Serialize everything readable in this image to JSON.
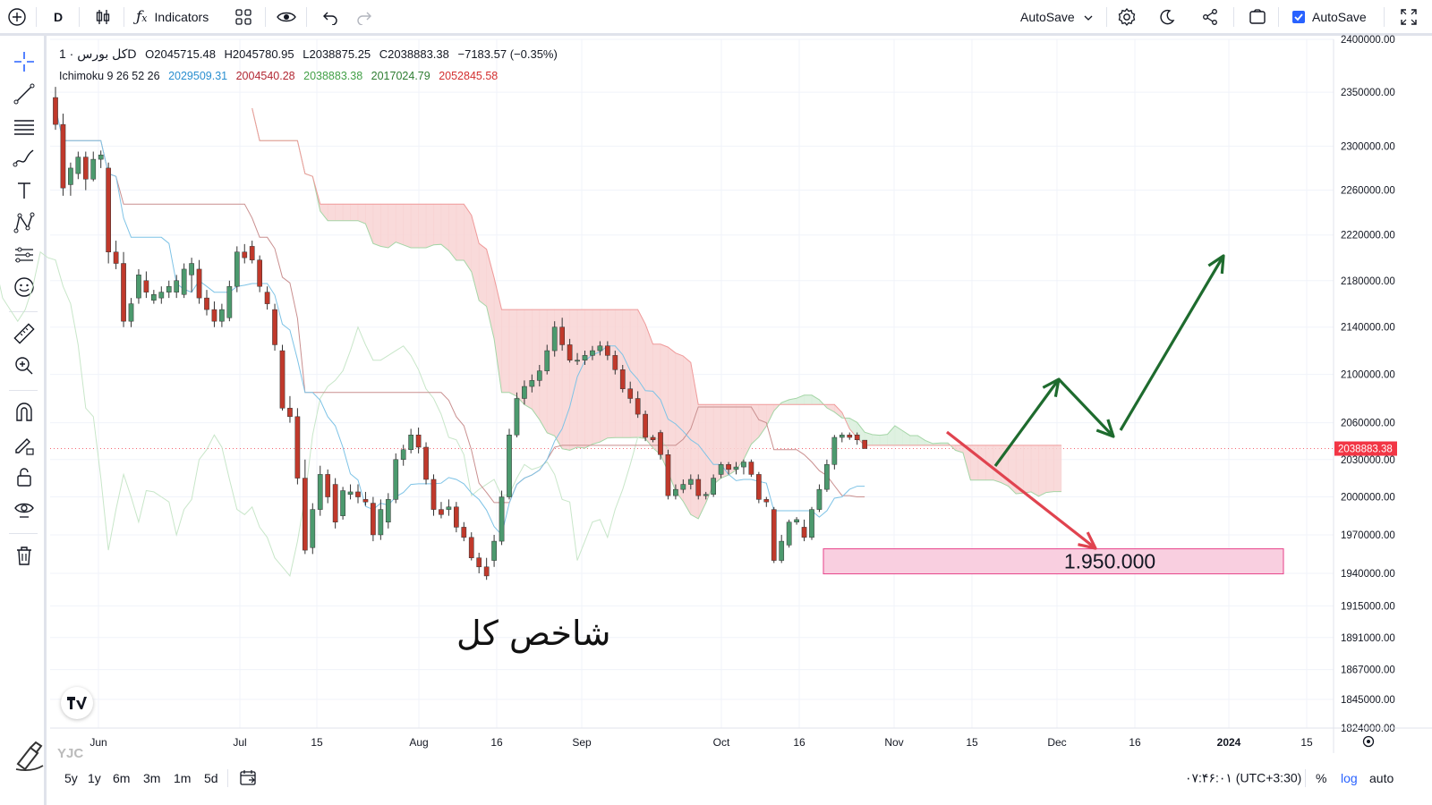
{
  "toolbar": {
    "interval": "D",
    "indicators_label": "Indicators",
    "autosave_dropdown": "AutoSave",
    "autosave_checkbox_label": "AutoSave"
  },
  "legend": {
    "symbol": "كل بورس · 1D",
    "open": "O2045715.48",
    "high": "H2045780.95",
    "low": "L2038875.25",
    "close": "C2038883.38",
    "change": "−7183.57 (−0.35%)",
    "ichimoku_label": "Ichimoku 9 26 52 26",
    "ichimoku_values": [
      {
        "value": "2029509.31",
        "color": "#2962ff"
      },
      {
        "value": "2004540.28",
        "color": "#b22833"
      },
      {
        "value": "2038883.38",
        "color": "#43a047"
      },
      {
        "value": "2017024.79",
        "color": "#388e3c"
      },
      {
        "value": "2052845.58",
        "color": "#f23645"
      }
    ]
  },
  "bottom": {
    "ranges": [
      "5y",
      "1y",
      "6m",
      "3m",
      "1m",
      "5d"
    ],
    "clock": "۰۷:۴۶:۰۱ (UTC+3:30)",
    "percent": "%",
    "log": "log",
    "auto": "auto"
  },
  "watermark_text": "شاخص کل",
  "logo_text": "YJC",
  "colors": {
    "up": "#4c9a6e",
    "down": "#c0392b",
    "cloud_green": "#d9efdc",
    "cloud_red": "#f8d3d3",
    "target_box": "#f9cfe0",
    "arrow_green": "#1e6b2e",
    "arrow_red": "#e0434f"
  },
  "chart_data": {
    "type": "candlestick",
    "symbol": "كل بورس",
    "interval": "1D",
    "x_ticks": [
      "Jun",
      "Jul",
      "15",
      "Aug",
      "16",
      "Sep",
      "Oct",
      "16",
      "Nov",
      "15",
      "Dec",
      "16",
      "2024",
      "15"
    ],
    "y_ticks": [
      "2400000.00",
      "2350000.00",
      "2300000.00",
      "2260000.00",
      "2220000.00",
      "2180000.00",
      "2140000.00",
      "2100000.00",
      "2060000.00",
      "2030000.00",
      "2000000.00",
      "1970000.00",
      "1940000.00",
      "1915000.00",
      "1891000.00",
      "1867000.00",
      "1845000.00",
      "1824000.00"
    ],
    "ylim": [
      1824000,
      2400000
    ],
    "log_scale": true,
    "last_price_label": "2038883.38",
    "target_label": "1.950.000",
    "target_level": 1950000,
    "candles": [
      {
        "o": 2345000,
        "h": 2355000,
        "l": 2315000,
        "c": 2320000
      },
      {
        "o": 2320000,
        "h": 2330000,
        "l": 2255000,
        "c": 2262000
      },
      {
        "o": 2265000,
        "h": 2285000,
        "l": 2255000,
        "c": 2280000
      },
      {
        "o": 2275000,
        "h": 2295000,
        "l": 2270000,
        "c": 2290000
      },
      {
        "o": 2290000,
        "h": 2295000,
        "l": 2260000,
        "c": 2270000
      },
      {
        "o": 2270000,
        "h": 2295000,
        "l": 2268000,
        "c": 2288000
      },
      {
        "o": 2288000,
        "h": 2296000,
        "l": 2280000,
        "c": 2292000
      },
      {
        "o": 2280000,
        "h": 2285000,
        "l": 2195000,
        "c": 2205000
      },
      {
        "o": 2205000,
        "h": 2215000,
        "l": 2190000,
        "c": 2195000
      },
      {
        "o": 2195000,
        "h": 2205000,
        "l": 2140000,
        "c": 2145000
      },
      {
        "o": 2145000,
        "h": 2165000,
        "l": 2140000,
        "c": 2160000
      },
      {
        "o": 2165000,
        "h": 2190000,
        "l": 2160000,
        "c": 2185000
      },
      {
        "o": 2180000,
        "h": 2188000,
        "l": 2165000,
        "c": 2170000
      },
      {
        "o": 2163000,
        "h": 2172000,
        "l": 2160000,
        "c": 2168000
      },
      {
        "o": 2165000,
        "h": 2175000,
        "l": 2160000,
        "c": 2170000
      },
      {
        "o": 2170000,
        "h": 2180000,
        "l": 2165000,
        "c": 2175000
      },
      {
        "o": 2170000,
        "h": 2185000,
        "l": 2165000,
        "c": 2180000
      },
      {
        "o": 2168000,
        "h": 2195000,
        "l": 2165000,
        "c": 2190000
      },
      {
        "o": 2185000,
        "h": 2200000,
        "l": 2170000,
        "c": 2195000
      },
      {
        "o": 2190000,
        "h": 2198000,
        "l": 2160000,
        "c": 2165000
      },
      {
        "o": 2165000,
        "h": 2172000,
        "l": 2150000,
        "c": 2155000
      },
      {
        "o": 2155000,
        "h": 2162000,
        "l": 2140000,
        "c": 2145000
      },
      {
        "o": 2145000,
        "h": 2160000,
        "l": 2140000,
        "c": 2155000
      },
      {
        "o": 2148000,
        "h": 2180000,
        "l": 2145000,
        "c": 2175000
      },
      {
        "o": 2175000,
        "h": 2210000,
        "l": 2170000,
        "c": 2205000
      },
      {
        "o": 2205000,
        "h": 2212000,
        "l": 2195000,
        "c": 2200000
      },
      {
        "o": 2210000,
        "h": 2215000,
        "l": 2195000,
        "c": 2198000
      },
      {
        "o": 2198000,
        "h": 2202000,
        "l": 2170000,
        "c": 2175000
      },
      {
        "o": 2170000,
        "h": 2175000,
        "l": 2155000,
        "c": 2160000
      },
      {
        "o": 2155000,
        "h": 2160000,
        "l": 2120000,
        "c": 2125000
      },
      {
        "o": 2120000,
        "h": 2125000,
        "l": 2070000,
        "c": 2072000
      },
      {
        "o": 2072000,
        "h": 2082000,
        "l": 2060000,
        "c": 2065000
      },
      {
        "o": 2065000,
        "h": 2072000,
        "l": 2010000,
        "c": 2015000
      },
      {
        "o": 2015000,
        "h": 2030000,
        "l": 1955000,
        "c": 1958000
      },
      {
        "o": 1960000,
        "h": 1995000,
        "l": 1955000,
        "c": 1990000
      },
      {
        "o": 1990000,
        "h": 2025000,
        "l": 1985000,
        "c": 2018000
      },
      {
        "o": 2018000,
        "h": 2022000,
        "l": 1995000,
        "c": 2000000
      },
      {
        "o": 2010000,
        "h": 2015000,
        "l": 1975000,
        "c": 1980000
      },
      {
        "o": 1985000,
        "h": 2008000,
        "l": 1982000,
        "c": 2005000
      },
      {
        "o": 2002000,
        "h": 2010000,
        "l": 1998000,
        "c": 2004000
      },
      {
        "o": 2004000,
        "h": 2010000,
        "l": 1995000,
        "c": 2000000
      },
      {
        "o": 1998000,
        "h": 2004000,
        "l": 1993000,
        "c": 1996000
      },
      {
        "o": 1995000,
        "h": 2000000,
        "l": 1965000,
        "c": 1970000
      },
      {
        "o": 1970000,
        "h": 1998000,
        "l": 1966000,
        "c": 1990000
      },
      {
        "o": 1980000,
        "h": 2003000,
        "l": 1975000,
        "c": 1998000
      },
      {
        "o": 1998000,
        "h": 2035000,
        "l": 1995000,
        "c": 2030000
      },
      {
        "o": 2030000,
        "h": 2042000,
        "l": 2025000,
        "c": 2038000
      },
      {
        "o": 2038000,
        "h": 2055000,
        "l": 2035000,
        "c": 2050000
      },
      {
        "o": 2050000,
        "h": 2056000,
        "l": 2035000,
        "c": 2040000
      },
      {
        "o": 2040000,
        "h": 2044000,
        "l": 2010000,
        "c": 2014000
      },
      {
        "o": 2014000,
        "h": 2018000,
        "l": 1985000,
        "c": 1990000
      },
      {
        "o": 1990000,
        "h": 1996000,
        "l": 1983000,
        "c": 1986000
      },
      {
        "o": 1990000,
        "h": 1998000,
        "l": 1985000,
        "c": 1992000
      },
      {
        "o": 1992000,
        "h": 1996000,
        "l": 1972000,
        "c": 1976000
      },
      {
        "o": 1976000,
        "h": 1980000,
        "l": 1965000,
        "c": 1968000
      },
      {
        "o": 1968000,
        "h": 1972000,
        "l": 1950000,
        "c": 1952000
      },
      {
        "o": 1952000,
        "h": 1956000,
        "l": 1940000,
        "c": 1945000
      },
      {
        "o": 1945000,
        "h": 1952000,
        "l": 1935000,
        "c": 1938000
      },
      {
        "o": 1950000,
        "h": 1970000,
        "l": 1945000,
        "c": 1965000
      },
      {
        "o": 1965000,
        "h": 2005000,
        "l": 1962000,
        "c": 2000000
      },
      {
        "o": 2000000,
        "h": 2055000,
        "l": 1998000,
        "c": 2050000
      },
      {
        "o": 2050000,
        "h": 2085000,
        "l": 2048000,
        "c": 2080000
      },
      {
        "o": 2080000,
        "h": 2095000,
        "l": 2075000,
        "c": 2090000
      },
      {
        "o": 2090000,
        "h": 2100000,
        "l": 2085000,
        "c": 2095000
      },
      {
        "o": 2095000,
        "h": 2108000,
        "l": 2090000,
        "c": 2103000
      },
      {
        "o": 2103000,
        "h": 2125000,
        "l": 2100000,
        "c": 2120000
      },
      {
        "o": 2120000,
        "h": 2145000,
        "l": 2115000,
        "c": 2140000
      },
      {
        "o": 2140000,
        "h": 2148000,
        "l": 2120000,
        "c": 2125000
      },
      {
        "o": 2125000,
        "h": 2130000,
        "l": 2110000,
        "c": 2112000
      },
      {
        "o": 2112000,
        "h": 2118000,
        "l": 2108000,
        "c": 2112000
      },
      {
        "o": 2112000,
        "h": 2120000,
        "l": 2108000,
        "c": 2116000
      },
      {
        "o": 2116000,
        "h": 2124000,
        "l": 2112000,
        "c": 2120000
      },
      {
        "o": 2120000,
        "h": 2128000,
        "l": 2116000,
        "c": 2124000
      },
      {
        "o": 2124000,
        "h": 2128000,
        "l": 2112000,
        "c": 2116000
      },
      {
        "o": 2116000,
        "h": 2120000,
        "l": 2100000,
        "c": 2104000
      },
      {
        "o": 2104000,
        "h": 2108000,
        "l": 2085000,
        "c": 2088000
      },
      {
        "o": 2088000,
        "h": 2094000,
        "l": 2076000,
        "c": 2080000
      },
      {
        "o": 2080000,
        "h": 2086000,
        "l": 2064000,
        "c": 2067000
      },
      {
        "o": 2067000,
        "h": 2070000,
        "l": 2045000,
        "c": 2048000
      },
      {
        "o": 2048000,
        "h": 2050000,
        "l": 2044000,
        "c": 2046000
      },
      {
        "o": 2052000,
        "h": 2054000,
        "l": 2030000,
        "c": 2034000
      },
      {
        "o": 2034000,
        "h": 2038000,
        "l": 1998000,
        "c": 2001000
      },
      {
        "o": 2001000,
        "h": 2010000,
        "l": 1998000,
        "c": 2006000
      },
      {
        "o": 2006000,
        "h": 2014000,
        "l": 2003000,
        "c": 2010000
      },
      {
        "o": 2010000,
        "h": 2018000,
        "l": 2006000,
        "c": 2014000
      },
      {
        "o": 2014000,
        "h": 2018000,
        "l": 1998000,
        "c": 2001000
      },
      {
        "o": 2001000,
        "h": 2004000,
        "l": 1998000,
        "c": 2002000
      },
      {
        "o": 2002000,
        "h": 2018000,
        "l": 2000000,
        "c": 2015000
      },
      {
        "o": 2018000,
        "h": 2028000,
        "l": 2015000,
        "c": 2026000
      },
      {
        "o": 2026000,
        "h": 2028000,
        "l": 2018000,
        "c": 2022000
      },
      {
        "o": 2022000,
        "h": 2028000,
        "l": 2018000,
        "c": 2024000
      },
      {
        "o": 2024000,
        "h": 2030000,
        "l": 2018000,
        "c": 2028000
      },
      {
        "o": 2028000,
        "h": 2030000,
        "l": 2016000,
        "c": 2018000
      },
      {
        "o": 2018000,
        "h": 2020000,
        "l": 1995000,
        "c": 1998000
      },
      {
        "o": 1998000,
        "h": 2000000,
        "l": 1992000,
        "c": 1996000
      },
      {
        "o": 1990000,
        "h": 1992000,
        "l": 1948000,
        "c": 1950000
      },
      {
        "o": 1950000,
        "h": 1970000,
        "l": 1948000,
        "c": 1965000
      },
      {
        "o": 1962000,
        "h": 1982000,
        "l": 1960000,
        "c": 1980000
      },
      {
        "o": 1980000,
        "h": 1984000,
        "l": 1978000,
        "c": 1982000
      },
      {
        "o": 1976000,
        "h": 1982000,
        "l": 1965000,
        "c": 1968000
      },
      {
        "o": 1968000,
        "h": 1992000,
        "l": 1966000,
        "c": 1990000
      },
      {
        "o": 1990000,
        "h": 2010000,
        "l": 1988000,
        "c": 2006000
      },
      {
        "o": 2006000,
        "h": 2030000,
        "l": 2004000,
        "c": 2026000
      },
      {
        "o": 2026000,
        "h": 2050000,
        "l": 2022000,
        "c": 2048000
      },
      {
        "o": 2048000,
        "h": 2052000,
        "l": 2044000,
        "c": 2050000
      },
      {
        "o": 2050000,
        "h": 2052000,
        "l": 2046000,
        "c": 2048000
      },
      {
        "o": 2050000,
        "h": 2052000,
        "l": 2042000,
        "c": 2046000
      },
      {
        "o": 2045715.48,
        "h": 2045780.95,
        "l": 2038875.25,
        "c": 2038883.38
      }
    ]
  }
}
